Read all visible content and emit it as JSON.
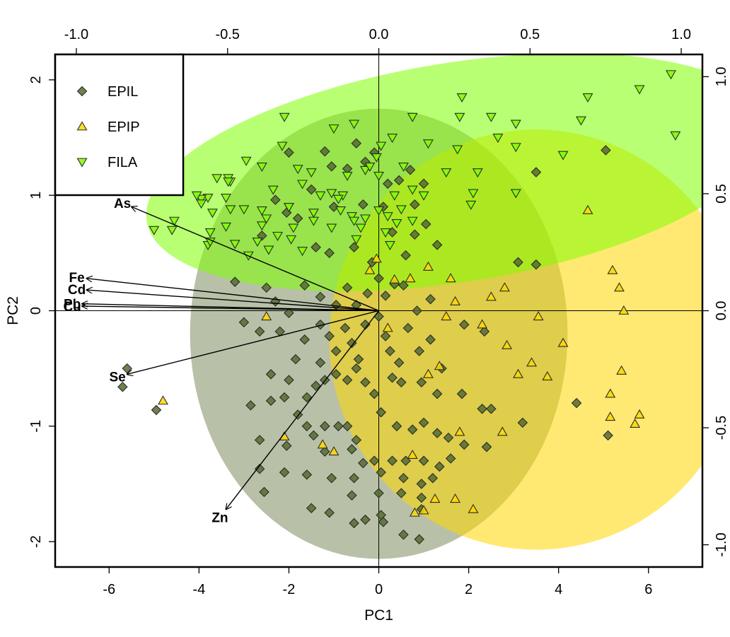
{
  "chart_data": {
    "type": "scatter",
    "subtype": "pca-biplot",
    "xlabel": "PC1",
    "ylabel": "PC2",
    "xlim": [
      -7.2,
      7.2
    ],
    "ylim": [
      -2.22,
      2.22
    ],
    "x_ticks": [
      -6,
      -4,
      -2,
      0,
      2,
      4,
      6
    ],
    "y_ticks": [
      -2,
      -1,
      0,
      1,
      2
    ],
    "top_axis": {
      "lim": [
        -1.0,
        1.0
      ],
      "ticks": [
        "-1.0",
        "-0.5",
        "0.0",
        "0.5",
        "1.0"
      ]
    },
    "right_axis": {
      "lim": [
        -1.0,
        1.0
      ],
      "ticks": [
        "-1.0",
        "-0.5",
        "0.0",
        "0.5",
        "1.0"
      ]
    },
    "reference_lines": {
      "x": 0,
      "y": 0
    },
    "legend": {
      "position": "top-left",
      "entries": [
        {
          "label": "EPIL",
          "marker": "diamond",
          "color": "#556B2F"
        },
        {
          "label": "EPIP",
          "marker": "triangle-up",
          "color": "#FFD700"
        },
        {
          "label": "FILA",
          "marker": "triangle-down",
          "color": "#7FFF00"
        }
      ]
    },
    "series": [
      {
        "name": "EPIL",
        "marker": "diamond",
        "color": "#556B2F",
        "ellipse": {
          "cx": 0.0,
          "cy": -0.2,
          "rx": 4.2,
          "ry": 1.95,
          "fill": "#556B2F",
          "opacity": 0.42
        },
        "points": [
          [
            -5.6,
            -0.5
          ],
          [
            -5.7,
            -0.66
          ],
          [
            -4.95,
            -0.86
          ],
          [
            -2.55,
            -1.57
          ],
          [
            -2.65,
            -1.37
          ],
          [
            -1.5,
            -1.71
          ],
          [
            -1.1,
            -1.75
          ],
          [
            -0.55,
            -1.84
          ],
          [
            -0.3,
            -1.81
          ],
          [
            0.1,
            -1.83
          ],
          [
            0.55,
            -1.94
          ],
          [
            0.9,
            -1.98
          ],
          [
            -2.0,
            1.37
          ],
          [
            -1.2,
            1.38
          ],
          [
            -0.5,
            1.45
          ],
          [
            -1.05,
            1.25
          ],
          [
            -0.7,
            1.23
          ],
          [
            -0.3,
            1.29
          ],
          [
            -0.1,
            1.37
          ],
          [
            0.2,
            1.1
          ],
          [
            0.45,
            1.13
          ],
          [
            0.7,
            1.22
          ],
          [
            1.0,
            1.1
          ],
          [
            -2.3,
            0.96
          ],
          [
            -2.05,
            0.85
          ],
          [
            -2.6,
            0.65
          ],
          [
            -1.5,
            1.05
          ],
          [
            -1.8,
            0.8
          ],
          [
            -1.0,
            0.9
          ],
          [
            -0.35,
            0.92
          ],
          [
            0.1,
            0.9
          ],
          [
            0.8,
            0.92
          ],
          [
            1.05,
            0.75
          ],
          [
            0.3,
            0.68
          ],
          [
            0.8,
            0.66
          ],
          [
            -1.4,
            0.55
          ],
          [
            -1.1,
            0.5
          ],
          [
            -0.55,
            0.55
          ],
          [
            -0.15,
            0.42
          ],
          [
            0.6,
            0.48
          ],
          [
            1.3,
            0.57
          ],
          [
            3.1,
            0.42
          ],
          [
            3.5,
            0.4
          ],
          [
            3.5,
            1.2
          ],
          [
            5.05,
            1.39
          ],
          [
            -3.2,
            0.25
          ],
          [
            -2.5,
            0.2
          ],
          [
            -2.3,
            0.08
          ],
          [
            -1.65,
            0.22
          ],
          [
            -1.3,
            0.12
          ],
          [
            -0.95,
            0.05
          ],
          [
            -0.7,
            0.2
          ],
          [
            -0.5,
            0.05
          ],
          [
            -0.25,
            0.15
          ],
          [
            0.0,
            0.28
          ],
          [
            0.15,
            0.13
          ],
          [
            0.35,
            0.23
          ],
          [
            0.55,
            0.22
          ],
          [
            0.85,
            0.0
          ],
          [
            1.15,
            0.1
          ],
          [
            -3.0,
            -0.1
          ],
          [
            -2.65,
            -0.18
          ],
          [
            -2.2,
            -0.18
          ],
          [
            -2.0,
            -0.02
          ],
          [
            -1.65,
            -0.25
          ],
          [
            -1.3,
            -0.12
          ],
          [
            -1.1,
            -0.22
          ],
          [
            -0.95,
            -0.35
          ],
          [
            -0.75,
            -0.15
          ],
          [
            -0.6,
            -0.28
          ],
          [
            -0.45,
            -0.42
          ],
          [
            -0.3,
            -0.12
          ],
          [
            0.0,
            -0.05
          ],
          [
            0.15,
            -0.22
          ],
          [
            0.25,
            -0.35
          ],
          [
            0.45,
            -0.45
          ],
          [
            0.65,
            -0.15
          ],
          [
            0.9,
            -0.35
          ],
          [
            1.15,
            -0.25
          ],
          [
            1.4,
            -0.5
          ],
          [
            1.9,
            -0.12
          ],
          [
            2.35,
            -0.18
          ],
          [
            -2.4,
            -0.55
          ],
          [
            -2.0,
            -0.6
          ],
          [
            -1.85,
            -0.42
          ],
          [
            -1.6,
            -0.75
          ],
          [
            -1.4,
            -0.65
          ],
          [
            -1.3,
            -0.45
          ],
          [
            -1.2,
            -0.6
          ],
          [
            -0.95,
            -0.55
          ],
          [
            -0.7,
            -0.6
          ],
          [
            -0.5,
            -0.5
          ],
          [
            -0.3,
            -0.62
          ],
          [
            -0.1,
            -0.72
          ],
          [
            0.3,
            -0.58
          ],
          [
            0.5,
            -0.62
          ],
          [
            0.95,
            -0.62
          ],
          [
            1.3,
            -0.72
          ],
          [
            1.85,
            -0.72
          ],
          [
            2.3,
            -0.85
          ],
          [
            2.5,
            -0.85
          ],
          [
            3.2,
            -0.97
          ],
          [
            4.4,
            -0.8
          ],
          [
            5.1,
            -1.08
          ],
          [
            -2.85,
            -0.82
          ],
          [
            -2.4,
            -0.78
          ],
          [
            -2.1,
            -0.75
          ],
          [
            -1.8,
            -0.9
          ],
          [
            -1.6,
            -1.0
          ],
          [
            -1.45,
            -1.08
          ],
          [
            -1.2,
            -1.0
          ],
          [
            -0.9,
            -1.0
          ],
          [
            -0.7,
            -1.0
          ],
          [
            -0.5,
            -1.12
          ],
          [
            0.05,
            -0.88
          ],
          [
            0.4,
            -1.0
          ],
          [
            0.75,
            -1.03
          ],
          [
            1.0,
            -0.97
          ],
          [
            1.3,
            -1.06
          ],
          [
            1.55,
            -1.1
          ],
          [
            1.9,
            -1.16
          ],
          [
            2.4,
            -1.18
          ],
          [
            -2.65,
            -1.12
          ],
          [
            -2.05,
            -1.17
          ],
          [
            -1.2,
            -1.22
          ],
          [
            -0.6,
            -1.2
          ],
          [
            -0.35,
            -1.32
          ],
          [
            -0.1,
            -1.3
          ],
          [
            0.3,
            -1.3
          ],
          [
            0.6,
            -1.3
          ],
          [
            1.0,
            -1.3
          ],
          [
            1.35,
            -1.35
          ],
          [
            1.6,
            -1.28
          ],
          [
            -2.1,
            -1.4
          ],
          [
            -1.6,
            -1.42
          ],
          [
            -1.05,
            -1.45
          ],
          [
            -0.55,
            -1.45
          ],
          [
            0.05,
            -1.4
          ],
          [
            0.55,
            -1.45
          ],
          [
            0.95,
            -1.5
          ],
          [
            1.2,
            -1.45
          ],
          [
            -0.6,
            -1.6
          ],
          [
            0.0,
            -1.58
          ],
          [
            0.5,
            -1.58
          ],
          [
            0.95,
            -1.62
          ],
          [
            0.05,
            -1.77
          ],
          [
            0.95,
            -1.72
          ]
        ]
      },
      {
        "name": "EPIP",
        "marker": "triangle-up",
        "color": "#FFD700",
        "ellipse": {
          "cx": 3.5,
          "cy": -0.25,
          "rx": 4.6,
          "ry": 1.82,
          "fill": "#FFD700",
          "opacity": 0.55
        },
        "points": [
          [
            -4.8,
            -0.78
          ],
          [
            -0.05,
            0.45
          ],
          [
            -0.2,
            0.35
          ],
          [
            0.35,
            0.27
          ],
          [
            0.7,
            0.28
          ],
          [
            1.1,
            0.38
          ],
          [
            1.6,
            0.28
          ],
          [
            2.8,
            0.2
          ],
          [
            0.2,
            -0.15
          ],
          [
            1.7,
            0.08
          ],
          [
            2.5,
            0.12
          ],
          [
            1.5,
            -0.05
          ],
          [
            3.55,
            -0.05
          ],
          [
            2.3,
            -0.12
          ],
          [
            2.85,
            -0.3
          ],
          [
            -2.5,
            -0.05
          ],
          [
            1.35,
            -0.48
          ],
          [
            3.1,
            -0.55
          ],
          [
            3.4,
            -0.45
          ],
          [
            3.75,
            -0.57
          ],
          [
            4.1,
            -0.28
          ],
          [
            1.1,
            -0.55
          ],
          [
            1.8,
            -1.05
          ],
          [
            -2.1,
            -1.09
          ],
          [
            -1.0,
            -1.22
          ],
          [
            -1.25,
            -1.16
          ],
          [
            0.75,
            -1.25
          ],
          [
            1.25,
            -1.63
          ],
          [
            0.8,
            -1.75
          ],
          [
            1.0,
            -1.73
          ],
          [
            1.7,
            -1.63
          ],
          [
            2.1,
            -1.72
          ],
          [
            2.75,
            -1.05
          ],
          [
            5.2,
            0.35
          ],
          [
            5.35,
            0.2
          ],
          [
            5.45,
            0.0
          ],
          [
            5.4,
            -0.52
          ],
          [
            5.15,
            -0.72
          ],
          [
            5.15,
            -0.92
          ],
          [
            5.8,
            -0.9
          ],
          [
            5.7,
            -0.98
          ],
          [
            4.65,
            0.87
          ]
        ]
      },
      {
        "name": "FILA",
        "marker": "triangle-down",
        "color": "#7FFF00",
        "ellipse": {
          "cx": 1.75,
          "cy": 1.2,
          "rx": 7.0,
          "ry": 0.95,
          "fill": "#7FFF00",
          "opacity": 0.55
        },
        "points": [
          [
            -5.0,
            0.7
          ],
          [
            -4.6,
            0.7
          ],
          [
            -4.55,
            0.78
          ],
          [
            -3.8,
            0.98
          ],
          [
            -3.95,
            0.97
          ],
          [
            -3.6,
            1.15
          ],
          [
            -3.35,
            1.15
          ],
          [
            -3.3,
            1.12
          ],
          [
            -3.95,
            0.93
          ],
          [
            -3.7,
            0.85
          ],
          [
            -3.4,
            0.98
          ],
          [
            -3.3,
            0.88
          ],
          [
            -3.4,
            0.73
          ],
          [
            -3.75,
            0.68
          ],
          [
            -3.8,
            0.57
          ],
          [
            -3.2,
            0.58
          ],
          [
            -3.0,
            0.88
          ],
          [
            -2.9,
            0.48
          ],
          [
            -2.7,
            0.6
          ],
          [
            -2.6,
            0.87
          ],
          [
            -2.6,
            0.74
          ],
          [
            -2.5,
            0.8
          ],
          [
            -2.45,
            0.53
          ],
          [
            -2.25,
            0.65
          ],
          [
            -2.0,
            0.9
          ],
          [
            -1.95,
            0.62
          ],
          [
            -2.15,
            1.43
          ],
          [
            -1.8,
            1.23
          ],
          [
            -1.7,
            1.1
          ],
          [
            -1.5,
            1.2
          ],
          [
            -1.3,
            1.0
          ],
          [
            -1.05,
            1.02
          ],
          [
            -0.8,
            1.0
          ],
          [
            -0.7,
            1.17
          ],
          [
            -0.3,
            1.22
          ],
          [
            -0.05,
            1.33
          ],
          [
            0.05,
            1.43
          ],
          [
            -0.55,
            1.62
          ],
          [
            -0.2,
            1.25
          ],
          [
            0.0,
            1.17
          ],
          [
            0.55,
            1.25
          ],
          [
            -2.95,
            1.3
          ],
          [
            -2.6,
            1.25
          ],
          [
            -3.35,
            1.12
          ],
          [
            -4.05,
            1.0
          ],
          [
            0.35,
            1.0
          ],
          [
            0.5,
            0.88
          ],
          [
            0.75,
            1.05
          ],
          [
            1.0,
            1.0
          ],
          [
            -1.9,
            0.72
          ],
          [
            -1.45,
            0.78
          ],
          [
            -1.05,
            0.72
          ],
          [
            -0.85,
            0.87
          ],
          [
            -0.6,
            0.82
          ],
          [
            -0.3,
            0.8
          ],
          [
            0.0,
            0.87
          ],
          [
            0.2,
            0.82
          ],
          [
            0.4,
            0.76
          ],
          [
            0.75,
            0.78
          ],
          [
            0.15,
            0.68
          ],
          [
            -0.55,
            0.78
          ],
          [
            -0.4,
            0.72
          ],
          [
            0.25,
            0.57
          ],
          [
            -0.5,
            0.62
          ],
          [
            -1.7,
            0.52
          ],
          [
            -2.0,
            0.9
          ],
          [
            -1.45,
            0.85
          ],
          [
            -0.9,
            0.97
          ],
          [
            -3.75,
            0.6
          ],
          [
            -2.35,
            1.05
          ],
          [
            -1.0,
            1.58
          ],
          [
            -2.1,
            1.68
          ],
          [
            0.3,
            1.5
          ],
          [
            0.75,
            1.68
          ],
          [
            1.1,
            1.45
          ],
          [
            1.75,
            1.4
          ],
          [
            1.8,
            1.68
          ],
          [
            1.85,
            1.85
          ],
          [
            2.5,
            1.68
          ],
          [
            2.65,
            1.5
          ],
          [
            3.05,
            1.62
          ],
          [
            3.05,
            1.42
          ],
          [
            2.2,
            1.2
          ],
          [
            2.05,
            0.92
          ],
          [
            1.5,
            1.2
          ],
          [
            2.1,
            1.02
          ],
          [
            3.05,
            1.02
          ],
          [
            4.1,
            1.35
          ],
          [
            4.5,
            1.65
          ],
          [
            4.65,
            1.85
          ],
          [
            5.8,
            1.92
          ],
          [
            6.5,
            2.05
          ],
          [
            6.6,
            1.52
          ]
        ]
      }
    ],
    "loadings": {
      "arrow_color": "#000000",
      "vectors": [
        {
          "label": "As",
          "x": -5.5,
          "y": 0.9
        },
        {
          "label": "Fe",
          "x": -6.5,
          "y": 0.28
        },
        {
          "label": "Cd",
          "x": -6.5,
          "y": 0.18
        },
        {
          "label": "Pb",
          "x": -6.6,
          "y": 0.06
        },
        {
          "label": "Cu",
          "x": -6.6,
          "y": 0.04
        },
        {
          "label": "Se",
          "x": -5.6,
          "y": -0.55
        },
        {
          "label": "Zn",
          "x": -3.4,
          "y": -1.72
        }
      ]
    }
  }
}
